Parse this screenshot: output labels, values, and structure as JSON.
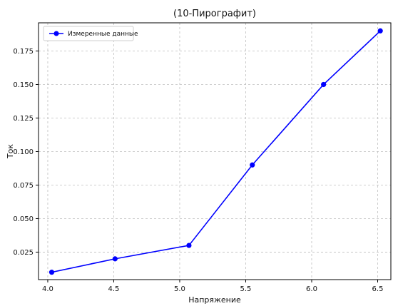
{
  "chart_data": {
    "type": "line",
    "title": "(10-Пирографит)",
    "xlabel": "Напряжение",
    "ylabel": "Ток",
    "xlim": [
      3.93,
      6.6
    ],
    "ylim": [
      0.0045,
      0.196
    ],
    "xticks": [
      4.0,
      4.5,
      5.0,
      5.5,
      6.0,
      6.5
    ],
    "yticks": [
      0.025,
      0.05,
      0.075,
      0.1,
      0.125,
      0.15,
      0.175
    ],
    "xtick_labels": [
      "4.0",
      "4.5",
      "5.0",
      "5.5",
      "6.0",
      "6.5"
    ],
    "ytick_labels": [
      "0.025",
      "0.050",
      "0.075",
      "0.100",
      "0.125",
      "0.150",
      "0.175"
    ],
    "grid": true,
    "legend_position": "top-left",
    "series": [
      {
        "name": "Измеренные данные",
        "color": "#0000ff",
        "x": [
          4.03,
          4.51,
          5.07,
          5.55,
          6.09,
          6.52
        ],
        "y": [
          0.01,
          0.02,
          0.03,
          0.09,
          0.15,
          0.19
        ]
      }
    ]
  }
}
